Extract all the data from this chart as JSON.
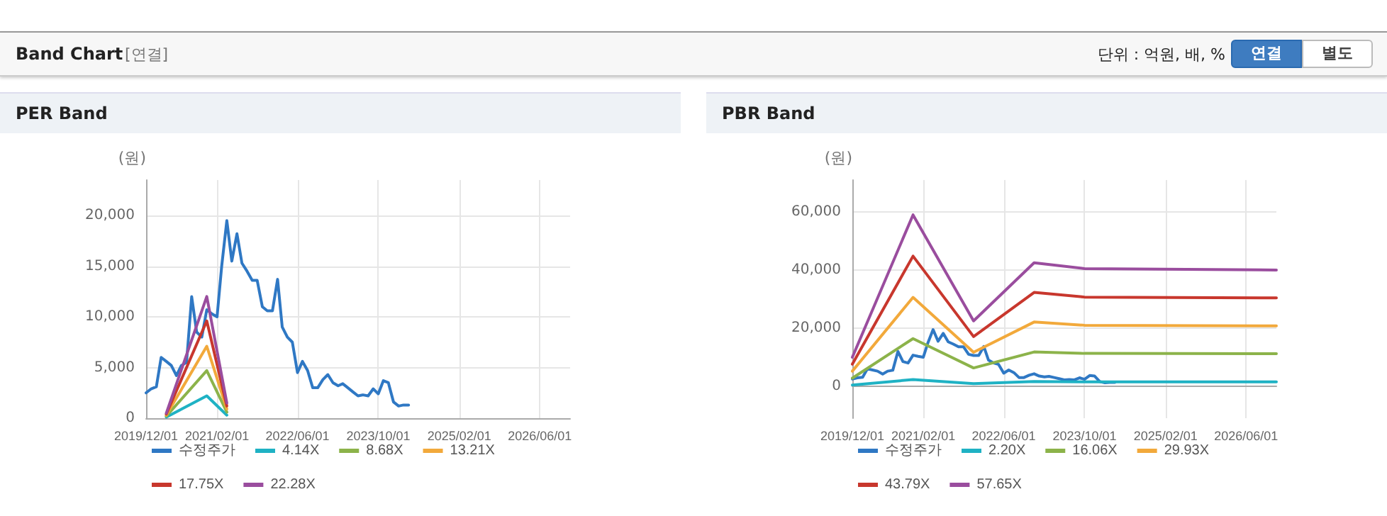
{
  "chart_data": [
    {
      "type": "other",
      "title": "Band Chart",
      "subtitle": "[연결]",
      "annotations": [
        "단위 : 억원, 배, %",
        "연결",
        "별도"
      ]
    },
    {
      "type": "line",
      "title": "PER Band",
      "ylabel": "(원)",
      "xlim": [
        "2019-12-01",
        "2026-12-01"
      ],
      "xticks": [
        {
          "value": "2019-12-01",
          "label": "2019/12/01"
        },
        {
          "value": "2021-02-01",
          "label": "2021/02/01"
        },
        {
          "value": "2022-06-01",
          "label": "2022/06/01"
        },
        {
          "value": "2023-10-01",
          "label": "2023/10/01"
        },
        {
          "value": "2025-02-01",
          "label": "2025/02/01"
        },
        {
          "value": "2026-06-01",
          "label": "2026/06/01"
        }
      ],
      "ylim": [
        0,
        23500
      ],
      "yticks": [
        0,
        {
          "value": 5000,
          "label": "5,000"
        },
        {
          "value": 10000,
          "label": "10,000"
        },
        {
          "value": 15000,
          "label": "15,000"
        },
        {
          "value": 20000,
          "label": "20,000"
        }
      ],
      "grid": true,
      "legend": "bottom",
      "marker": "none",
      "line_style": "solid",
      "series": [
        {
          "name": "수정주가",
          "color": "#2f78c4",
          "x": [
            "2019-12",
            "2020-01",
            "2020-02",
            "2020-03",
            "2020-04",
            "2020-05",
            "2020-06",
            "2020-07",
            "2020-08",
            "2020-09",
            "2020-10",
            "2020-11",
            "2020-12",
            "2021-01",
            "2021-02",
            "2021-03",
            "2021-04",
            "2021-05",
            "2021-06",
            "2021-07",
            "2021-08",
            "2021-09",
            "2021-10",
            "2021-11",
            "2021-12",
            "2022-01",
            "2022-02",
            "2022-03",
            "2022-04",
            "2022-05",
            "2022-06",
            "2022-07",
            "2022-08",
            "2022-09",
            "2022-10",
            "2022-11",
            "2022-12",
            "2023-01",
            "2023-02",
            "2023-03",
            "2023-04",
            "2023-05",
            "2023-06",
            "2023-07",
            "2023-08",
            "2023-09",
            "2023-10",
            "2023-11",
            "2023-12",
            "2024-01",
            "2024-02",
            "2024-03",
            "2024-04"
          ],
          "values": [
            2500,
            2900,
            3100,
            6000,
            5600,
            5200,
            4200,
            5200,
            5500,
            12000,
            8500,
            8000,
            10700,
            10300,
            10000,
            15000,
            19500,
            15500,
            18200,
            15300,
            14500,
            13600,
            13600,
            11000,
            10600,
            10600,
            13700,
            9000,
            8000,
            7500,
            4500,
            5600,
            4700,
            3000,
            3000,
            3800,
            4300,
            3500,
            3200,
            3400,
            3000,
            2600,
            2200,
            2300,
            2200,
            2900,
            2400,
            3700,
            3500,
            1600,
            1200,
            1300,
            1300
          ]
        },
        {
          "name": "4.14X",
          "color": "#1fb2c4",
          "x": [
            "2020-04",
            "2020-12",
            "2021-04"
          ],
          "values": [
            100,
            2200,
            300
          ]
        },
        {
          "name": "8.68X",
          "color": "#8cb34a",
          "x": [
            "2020-04",
            "2020-12",
            "2021-04"
          ],
          "values": [
            200,
            4700,
            600
          ]
        },
        {
          "name": "13.21X",
          "color": "#f2a93b",
          "x": [
            "2020-04",
            "2020-12",
            "2021-04"
          ],
          "values": [
            300,
            7100,
            900
          ]
        },
        {
          "name": "17.75X",
          "color": "#c8372d",
          "x": [
            "2020-04",
            "2020-12",
            "2021-04"
          ],
          "values": [
            400,
            9600,
            1200
          ]
        },
        {
          "name": "22.28X",
          "color": "#9a4d9e",
          "x": [
            "2020-04",
            "2020-12",
            "2021-04"
          ],
          "values": [
            500,
            12000,
            1500
          ]
        }
      ]
    },
    {
      "type": "line",
      "title": "PBR Band",
      "ylabel": "(원)",
      "xlim": [
        "2019-12-01",
        "2026-12-01"
      ],
      "xticks": [
        {
          "value": "2019-12-01",
          "label": "2019/12/01"
        },
        {
          "value": "2021-02-01",
          "label": "2021/02/01"
        },
        {
          "value": "2022-06-01",
          "label": "2022/06/01"
        },
        {
          "value": "2023-10-01",
          "label": "2023/10/01"
        },
        {
          "value": "2025-02-01",
          "label": "2025/02/01"
        },
        {
          "value": "2026-06-01",
          "label": "2026/06/01"
        }
      ],
      "ylim": [
        -11000,
        71000
      ],
      "yticks": [
        0,
        {
          "value": 20000,
          "label": "20,000"
        },
        {
          "value": 40000,
          "label": "40,000"
        },
        {
          "value": 60000,
          "label": "60,000"
        }
      ],
      "grid": true,
      "legend": "bottom",
      "marker": "none",
      "line_style": "solid",
      "series": [
        {
          "name": "수정주가",
          "color": "#2f78c4",
          "x": [
            "2019-12",
            "2020-01",
            "2020-02",
            "2020-03",
            "2020-04",
            "2020-05",
            "2020-06",
            "2020-07",
            "2020-08",
            "2020-09",
            "2020-10",
            "2020-11",
            "2020-12",
            "2021-01",
            "2021-02",
            "2021-03",
            "2021-04",
            "2021-05",
            "2021-06",
            "2021-07",
            "2021-08",
            "2021-09",
            "2021-10",
            "2021-11",
            "2021-12",
            "2022-01",
            "2022-02",
            "2022-03",
            "2022-04",
            "2022-05",
            "2022-06",
            "2022-07",
            "2022-08",
            "2022-09",
            "2022-10",
            "2022-11",
            "2022-12",
            "2023-01",
            "2023-02",
            "2023-03",
            "2023-04",
            "2023-05",
            "2023-06",
            "2023-07",
            "2023-08",
            "2023-09",
            "2023-10",
            "2023-11",
            "2023-12",
            "2024-01",
            "2024-02",
            "2024-03",
            "2024-04"
          ],
          "values": [
            2500,
            2900,
            3100,
            6000,
            5600,
            5200,
            4200,
            5200,
            5500,
            12000,
            8500,
            8000,
            10700,
            10300,
            10000,
            15000,
            19500,
            15500,
            18200,
            15300,
            14500,
            13600,
            13600,
            11000,
            10600,
            10600,
            13700,
            9000,
            8000,
            7500,
            4500,
            5600,
            4700,
            3000,
            3000,
            3800,
            4300,
            3500,
            3200,
            3400,
            3000,
            2600,
            2200,
            2300,
            2200,
            2900,
            2400,
            3700,
            3500,
            1600,
            1200,
            1300,
            1300
          ]
        },
        {
          "name": "2.20X",
          "color": "#1fb2c4",
          "x": [
            "2019-12",
            "2020-12",
            "2021-12",
            "2022-12",
            "2023-10",
            "2026-12"
          ],
          "values": [
            400,
            2300,
            900,
            1600,
            1500,
            1500
          ]
        },
        {
          "name": "16.06X",
          "color": "#8cb34a",
          "x": [
            "2019-12",
            "2020-12",
            "2021-12",
            "2022-12",
            "2023-10",
            "2026-12"
          ],
          "values": [
            2800,
            16400,
            6300,
            11800,
            11300,
            11200
          ]
        },
        {
          "name": "29.93X",
          "color": "#f2a93b",
          "x": [
            "2019-12",
            "2020-12",
            "2021-12",
            "2022-12",
            "2023-10",
            "2026-12"
          ],
          "values": [
            5200,
            30600,
            11700,
            22100,
            21000,
            20800
          ]
        },
        {
          "name": "43.79X",
          "color": "#c8372d",
          "x": [
            "2019-12",
            "2020-12",
            "2021-12",
            "2022-12",
            "2023-10",
            "2026-12"
          ],
          "values": [
            7600,
            44800,
            17100,
            32300,
            30700,
            30400
          ]
        },
        {
          "name": "57.65X",
          "color": "#9a4d9e",
          "x": [
            "2019-12",
            "2020-12",
            "2021-12",
            "2022-12",
            "2023-10",
            "2026-12"
          ],
          "values": [
            10000,
            59000,
            22500,
            42500,
            40500,
            40000
          ]
        }
      ]
    }
  ]
}
